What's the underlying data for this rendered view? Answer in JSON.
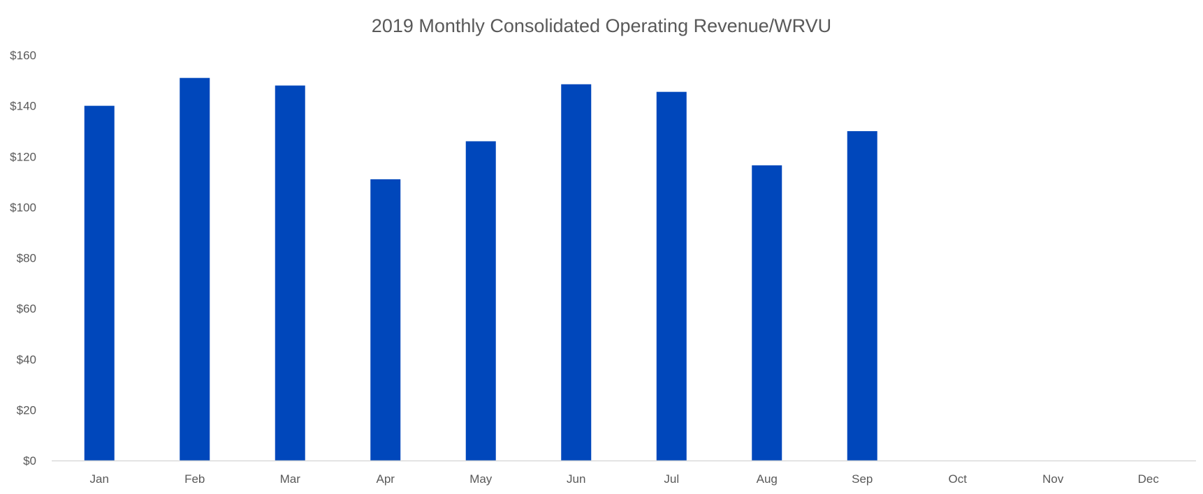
{
  "chart_data": {
    "type": "bar",
    "title": "2019 Monthly Consolidated Operating Revenue/WRVU",
    "xlabel": "",
    "ylabel": "",
    "categories": [
      "Jan",
      "Feb",
      "Mar",
      "Apr",
      "May",
      "Jun",
      "Jul",
      "Aug",
      "Sep",
      "Oct",
      "Nov",
      "Dec"
    ],
    "values": [
      140,
      151,
      148,
      111,
      126,
      148.5,
      145.5,
      116.5,
      130,
      null,
      null,
      null
    ],
    "ylim": [
      0,
      160
    ],
    "yticks": [
      0,
      20,
      40,
      60,
      80,
      100,
      120,
      140,
      160
    ],
    "ytick_labels": [
      "$0",
      "$20",
      "$40",
      "$60",
      "$80",
      "$100",
      "$120",
      "$140",
      "$160"
    ],
    "grid": false,
    "legend": "none",
    "bar_color": "#0047BB"
  }
}
